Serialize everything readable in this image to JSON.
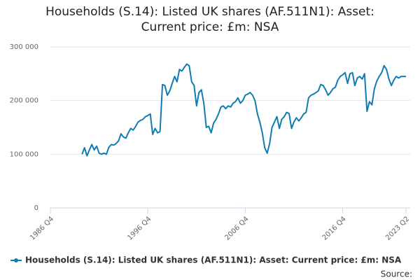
{
  "chart_data": {
    "type": "line",
    "title": "Households (S.14): Listed UK shares (AF.511N1): Asset: Current price: £m: NSA",
    "source": "Source:",
    "x": [
      "1990 Q1",
      "1990 Q2",
      "1990 Q3",
      "1990 Q4",
      "1991 Q1",
      "1991 Q2",
      "1991 Q3",
      "1991 Q4",
      "1992 Q1",
      "1992 Q2",
      "1992 Q3",
      "1992 Q4",
      "1993 Q1",
      "1993 Q2",
      "1993 Q3",
      "1993 Q4",
      "1994 Q1",
      "1994 Q2",
      "1994 Q3",
      "1994 Q4",
      "1995 Q1",
      "1995 Q2",
      "1995 Q3",
      "1995 Q4",
      "1996 Q1",
      "1996 Q2",
      "1996 Q3",
      "1996 Q4",
      "1997 Q1",
      "1997 Q2",
      "1997 Q3",
      "1997 Q4",
      "1998 Q1",
      "1998 Q2",
      "1998 Q3",
      "1998 Q4",
      "1999 Q1",
      "1999 Q2",
      "1999 Q3",
      "1999 Q4",
      "2000 Q1",
      "2000 Q2",
      "2000 Q3",
      "2000 Q4",
      "2001 Q1",
      "2001 Q2",
      "2001 Q3",
      "2001 Q4",
      "2002 Q1",
      "2002 Q2",
      "2002 Q3",
      "2002 Q4",
      "2003 Q1",
      "2003 Q2",
      "2003 Q3",
      "2003 Q4",
      "2004 Q1",
      "2004 Q2",
      "2004 Q3",
      "2004 Q4",
      "2005 Q1",
      "2005 Q2",
      "2005 Q3",
      "2005 Q4",
      "2006 Q1",
      "2006 Q2",
      "2006 Q3",
      "2006 Q4",
      "2007 Q1",
      "2007 Q2",
      "2007 Q3",
      "2007 Q4",
      "2008 Q1",
      "2008 Q2",
      "2008 Q3",
      "2008 Q4",
      "2009 Q1",
      "2009 Q2",
      "2009 Q3",
      "2009 Q4",
      "2010 Q1",
      "2010 Q2",
      "2010 Q3",
      "2010 Q4",
      "2011 Q1",
      "2011 Q2",
      "2011 Q3",
      "2011 Q4",
      "2012 Q1",
      "2012 Q2",
      "2012 Q3",
      "2012 Q4",
      "2013 Q1",
      "2013 Q2",
      "2013 Q3",
      "2013 Q4",
      "2014 Q1",
      "2014 Q2",
      "2014 Q3",
      "2014 Q4",
      "2015 Q1",
      "2015 Q2",
      "2015 Q3",
      "2015 Q4",
      "2016 Q1",
      "2016 Q2",
      "2016 Q3",
      "2016 Q4",
      "2017 Q1",
      "2017 Q2",
      "2017 Q3",
      "2017 Q4",
      "2018 Q1",
      "2018 Q2",
      "2018 Q3",
      "2018 Q4",
      "2019 Q1",
      "2019 Q2",
      "2019 Q3",
      "2019 Q4",
      "2020 Q1",
      "2020 Q2",
      "2020 Q3",
      "2020 Q4",
      "2021 Q1",
      "2021 Q2",
      "2021 Q3",
      "2021 Q4",
      "2022 Q1",
      "2022 Q2",
      "2022 Q3",
      "2022 Q4",
      "2023 Q1",
      "2023 Q2"
    ],
    "series": [
      {
        "name": "Households (S.14): Listed UK shares (AF.511N1): Asset: Current price: £m: NSA",
        "color": "#0f7cb4",
        "values": [
          100000,
          112000,
          97000,
          108000,
          118000,
          108000,
          115000,
          102000,
          100000,
          102000,
          100000,
          113000,
          118000,
          117000,
          120000,
          125000,
          138000,
          132000,
          130000,
          140000,
          148000,
          145000,
          152000,
          160000,
          163000,
          165000,
          170000,
          172000,
          175000,
          137000,
          148000,
          140000,
          142000,
          230000,
          228000,
          210000,
          218000,
          232000,
          245000,
          235000,
          258000,
          255000,
          262000,
          268000,
          265000,
          235000,
          228000,
          190000,
          215000,
          220000,
          195000,
          150000,
          152000,
          140000,
          158000,
          165000,
          175000,
          188000,
          190000,
          185000,
          190000,
          188000,
          195000,
          198000,
          205000,
          195000,
          200000,
          210000,
          212000,
          215000,
          210000,
          200000,
          175000,
          160000,
          140000,
          112000,
          102000,
          120000,
          150000,
          160000,
          170000,
          148000,
          165000,
          170000,
          178000,
          176000,
          148000,
          160000,
          168000,
          162000,
          168000,
          175000,
          178000,
          205000,
          210000,
          212000,
          215000,
          218000,
          230000,
          228000,
          220000,
          210000,
          215000,
          222000,
          225000,
          238000,
          245000,
          248000,
          252000,
          232000,
          250000,
          252000,
          228000,
          242000,
          245000,
          240000,
          250000,
          180000,
          198000,
          192000,
          222000,
          236000,
          245000,
          252000,
          265000,
          258000,
          240000,
          228000,
          238000,
          245000,
          242000,
          245000,
          245000,
          245000
        ]
      }
    ],
    "xlim": [
      "1986 Q4",
      "2023 Q2"
    ],
    "xticks": [
      "1986 Q4",
      "1996 Q4",
      "2006 Q4",
      "2016 Q4",
      "2023 Q2"
    ],
    "ylim": [
      0,
      300000
    ],
    "yticks": [
      0,
      {
        "value": 100000,
        "label": "100 000"
      },
      {
        "value": 200000,
        "label": "200 000"
      },
      {
        "value": 300000,
        "label": "300 000"
      }
    ],
    "grid": true
  }
}
